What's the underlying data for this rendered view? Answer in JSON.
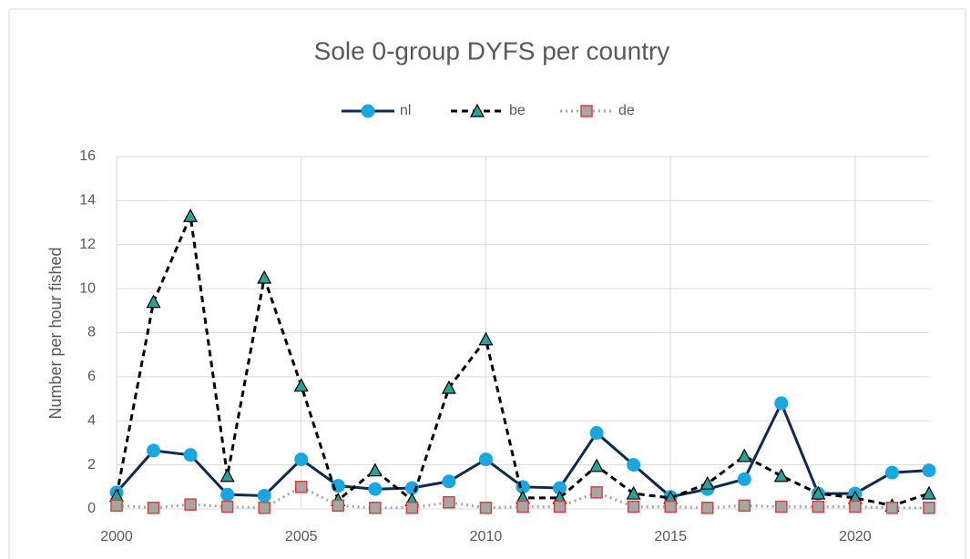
{
  "chart_data": {
    "type": "line",
    "title": "Sole 0-group DYFS per country",
    "y_label": "Number per hour fished",
    "x": [
      2000,
      2001,
      2002,
      2003,
      2004,
      2005,
      2006,
      2007,
      2008,
      2009,
      2010,
      2011,
      2012,
      2013,
      2014,
      2015,
      2016,
      2017,
      2018,
      2019,
      2020,
      2021,
      2022
    ],
    "xlim": [
      2000,
      2022
    ],
    "xticks": [
      2000,
      2005,
      2010,
      2015,
      2020
    ],
    "ylim": [
      0,
      16
    ],
    "yticks": [
      0,
      2,
      4,
      6,
      8,
      10,
      12,
      14,
      16
    ],
    "grid": true,
    "legend": "top",
    "series": [
      {
        "name": "nl",
        "color": "#0e2a4f",
        "marker": "circle",
        "marker_color": "#1aa7e0",
        "line_style": "solid",
        "values": [
          0.75,
          2.65,
          2.45,
          0.65,
          0.6,
          2.25,
          1.05,
          0.9,
          0.95,
          1.25,
          2.25,
          1.0,
          0.95,
          3.45,
          2.0,
          0.55,
          0.9,
          1.35,
          4.8,
          0.7,
          0.7,
          1.65,
          1.75
        ]
      },
      {
        "name": "be",
        "color": "#000000",
        "marker": "triangle",
        "marker_color": "#2aa198",
        "line_style": "dashed",
        "values": [
          0.6,
          9.4,
          13.3,
          1.5,
          10.5,
          5.6,
          0.4,
          1.75,
          0.4,
          5.5,
          7.7,
          0.5,
          0.5,
          1.95,
          0.7,
          0.5,
          1.15,
          2.4,
          1.5,
          0.7,
          0.5,
          0.15,
          0.7
        ]
      },
      {
        "name": "de",
        "color": "#a6a6a6",
        "marker": "square",
        "marker_color": "#a6a6a6",
        "line_style": "dotted",
        "values": [
          0.15,
          0.05,
          0.2,
          0.1,
          0.05,
          1.0,
          0.15,
          0.05,
          0.05,
          0.3,
          0.05,
          0.1,
          0.1,
          0.75,
          0.1,
          0.1,
          0.05,
          0.15,
          0.1,
          0.1,
          0.1,
          0.05,
          0.05
        ]
      }
    ]
  }
}
